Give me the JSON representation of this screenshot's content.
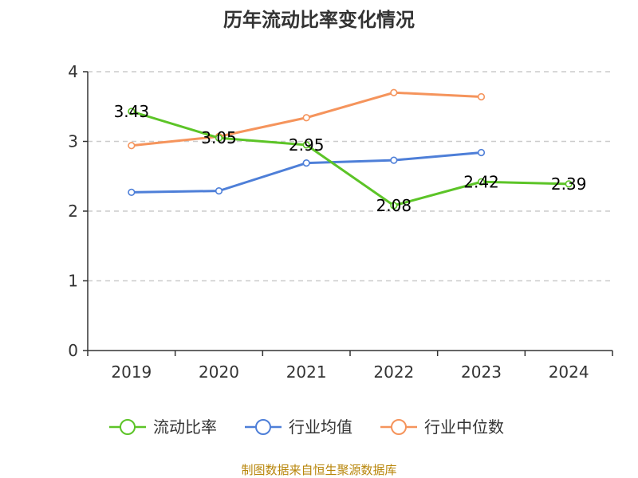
{
  "chart_data": {
    "type": "line",
    "title": "历年流动比率变化情况",
    "categories": [
      "2019",
      "2020",
      "2021",
      "2022",
      "2023",
      "2024"
    ],
    "ylim": [
      0,
      4
    ],
    "yticks": [
      0,
      1,
      2,
      3,
      4
    ],
    "grid": true,
    "legend_position": "bottom",
    "series": [
      {
        "name": "流动比率",
        "color": "#5cc427",
        "values": [
          3.43,
          3.05,
          2.95,
          2.08,
          2.42,
          2.39
        ],
        "labels": [
          "3.43",
          "3.05",
          "2.95",
          "2.08",
          "2.42",
          "2.39"
        ]
      },
      {
        "name": "行业均值",
        "color": "#4e7fd8",
        "values": [
          2.27,
          2.29,
          2.69,
          2.73,
          2.84,
          null
        ]
      },
      {
        "name": "行业中位数",
        "color": "#f5945c",
        "values": [
          2.94,
          3.07,
          3.34,
          3.7,
          3.64,
          null
        ]
      }
    ]
  },
  "source_text": "制图数据来自恒生聚源数据库"
}
